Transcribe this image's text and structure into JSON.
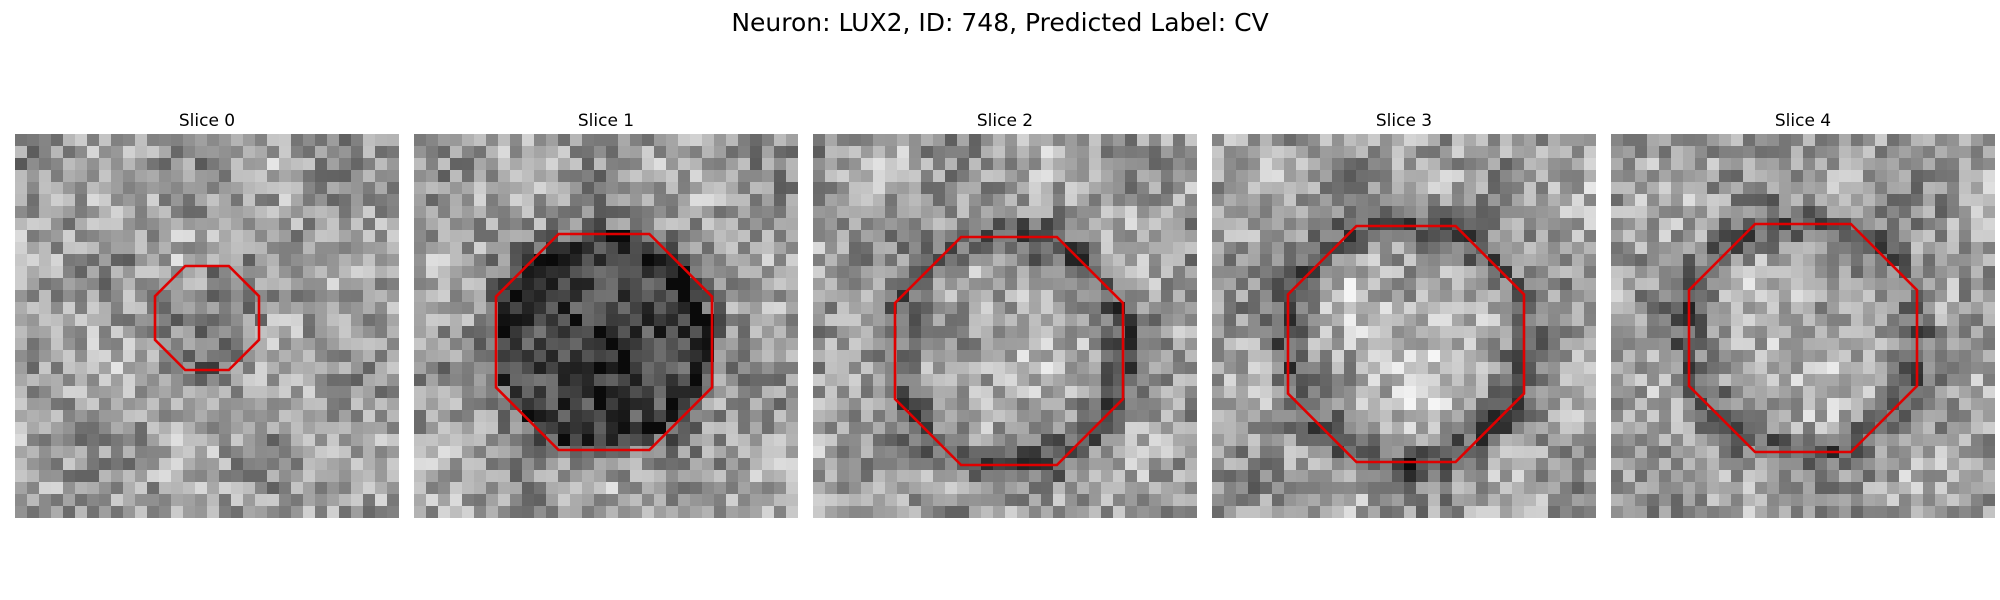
{
  "figure": {
    "title": "Neuron: LUX2, ID: 748, Predicted Label: CV",
    "outline_color": "#e00000"
  },
  "panels": [
    {
      "title": "Slice 0"
    },
    {
      "title": "Slice 1"
    },
    {
      "title": "Slice 2"
    },
    {
      "title": "Slice 3"
    },
    {
      "title": "Slice 4"
    }
  ]
}
